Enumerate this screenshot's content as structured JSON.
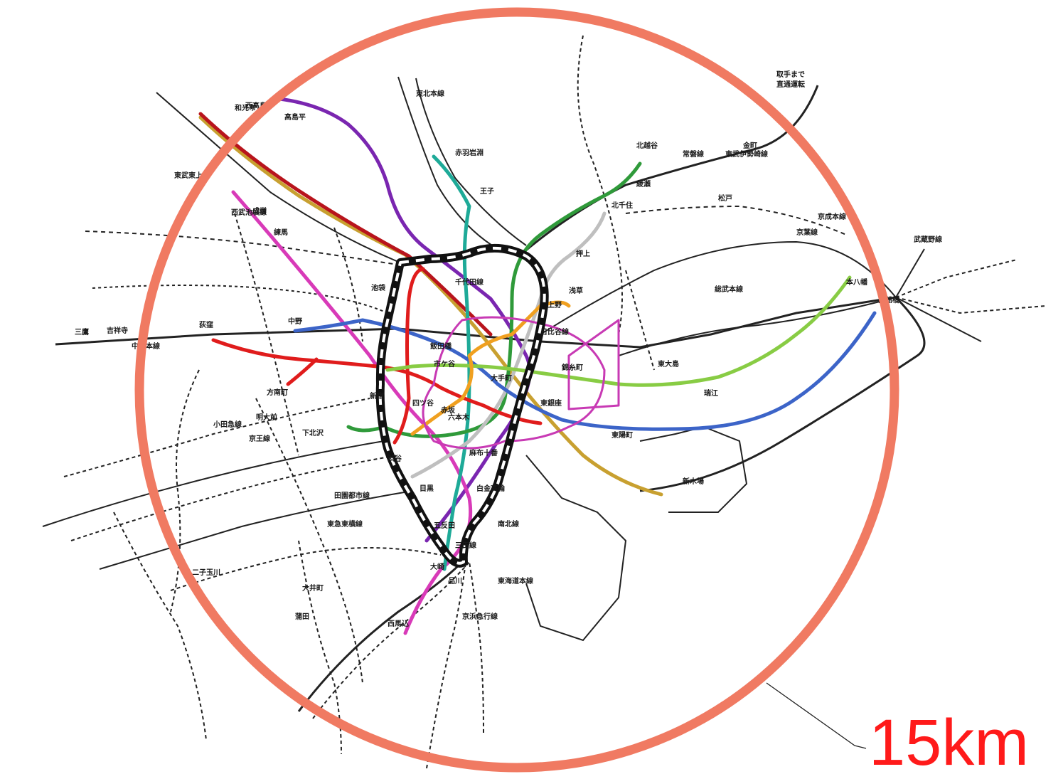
{
  "scale": {
    "label": "15km",
    "ring_color": "#f07a62",
    "label_color": "#ff1a1a"
  },
  "loop_line_color": "#111111",
  "lines": [
    {
      "name": "olive-line",
      "color": "#c8a030"
    },
    {
      "name": "dark-red-line",
      "color": "#b8141c"
    },
    {
      "name": "purple-line",
      "color": "#7a26b0"
    },
    {
      "name": "magenta-line",
      "color": "#d83ab8"
    },
    {
      "name": "teal-line",
      "color": "#1eaa98"
    },
    {
      "name": "green-line",
      "color": "#2f9a3a"
    },
    {
      "name": "gray-line",
      "color": "#bfbfbf"
    },
    {
      "name": "blue-line",
      "color": "#3c64c8"
    },
    {
      "name": "red-line",
      "color": "#e01c1c"
    },
    {
      "name": "lime-line",
      "color": "#88cc44"
    },
    {
      "name": "orange-line",
      "color": "#f0a020"
    },
    {
      "name": "pink-loop-line",
      "color": "#c83ab4"
    }
  ],
  "labels": [
    "西高島平",
    "高島平",
    "東北本線",
    "赤羽岩淵",
    "王子",
    "取手まで",
    "直通運転",
    "北越谷",
    "北千住",
    "綾瀬",
    "金町",
    "松戸",
    "本八幡",
    "西船橋",
    "武蔵野線",
    "京葉線",
    "東陽町",
    "中野",
    "荻窪",
    "方南町",
    "吉祥寺",
    "三鷹",
    "池袋",
    "新宿",
    "渋谷",
    "目黒",
    "五反田",
    "大崎",
    "品川",
    "上野",
    "浅草",
    "押上",
    "東大島",
    "瑞江",
    "新木場",
    "和光市",
    "成増",
    "練馬",
    "二子玉川",
    "大井町",
    "蒲田",
    "西馬込",
    "下北沢",
    "明大前",
    "中央本線",
    "総武本線",
    "常磐線",
    "京成本線",
    "東武伊勢崎線",
    "西武池袋線",
    "東武東上線",
    "小田急線",
    "京王線",
    "東急東横線",
    "東海道本線",
    "京浜急行線",
    "田園都市線",
    "日比谷線",
    "千代田線",
    "南北線",
    "三田線",
    "大手町",
    "東銀座",
    "錦糸町",
    "飯田橋",
    "市ケ谷",
    "四ツ谷",
    "赤坂",
    "六本木",
    "麻布十番",
    "白金高輪"
  ]
}
